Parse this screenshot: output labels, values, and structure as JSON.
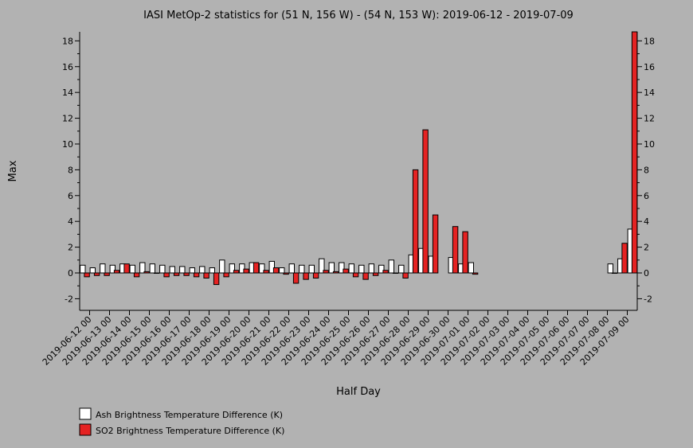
{
  "chart_data": {
    "type": "bar",
    "title": "IASI MetOp-2 statistics for (51 N, 156 W) - (54 N, 153 W): 2019-06-12 - 2019-07-09",
    "xlabel": "Half Day",
    "ylabel": "Max",
    "ylim": [
      -2.9,
      18.7
    ],
    "yticks": [
      -2,
      0,
      2,
      4,
      6,
      8,
      10,
      12,
      14,
      16,
      18
    ],
    "grid": false,
    "legend_position": "bottom-left",
    "x_tick_labels": [
      "2019-06-12 00",
      "2019-06-13 00",
      "2019-06-14 00",
      "2019-06-15 00",
      "2019-06-16 00",
      "2019-06-17 00",
      "2019-06-18 00",
      "2019-06-19 00",
      "2019-06-20 00",
      "2019-06-21 00",
      "2019-06-22 00",
      "2019-06-23 00",
      "2019-06-24 00",
      "2019-06-25 00",
      "2019-06-26 00",
      "2019-06-27 00",
      "2019-06-28 00",
      "2019-06-29 00",
      "2019-06-30 00",
      "2019-07-01 00",
      "2019-07-02 00",
      "2019-07-03 00",
      "2019-07-04 00",
      "2019-07-05 00",
      "2019-07-06 00",
      "2019-07-07 00",
      "2019-07-08 00",
      "2019-07-09 00"
    ],
    "categories": [
      "2019-06-12 00",
      "2019-06-12 12",
      "2019-06-13 00",
      "2019-06-13 12",
      "2019-06-14 00",
      "2019-06-14 12",
      "2019-06-15 00",
      "2019-06-15 12",
      "2019-06-16 00",
      "2019-06-16 12",
      "2019-06-17 00",
      "2019-06-17 12",
      "2019-06-18 00",
      "2019-06-18 12",
      "2019-06-19 00",
      "2019-06-19 12",
      "2019-06-20 00",
      "2019-06-20 12",
      "2019-06-21 00",
      "2019-06-21 12",
      "2019-06-22 00",
      "2019-06-22 12",
      "2019-06-23 00",
      "2019-06-23 12",
      "2019-06-24 00",
      "2019-06-24 12",
      "2019-06-25 00",
      "2019-06-25 12",
      "2019-06-26 00",
      "2019-06-26 12",
      "2019-06-27 00",
      "2019-06-27 12",
      "2019-06-28 00",
      "2019-06-28 12",
      "2019-06-29 00",
      "2019-06-29 12",
      "2019-06-30 00",
      "2019-06-30 12",
      "2019-07-01 00",
      "2019-07-01 12",
      "2019-07-02 00",
      "2019-07-02 12",
      "2019-07-03 00",
      "2019-07-03 12",
      "2019-07-04 00",
      "2019-07-04 12",
      "2019-07-05 00",
      "2019-07-05 12",
      "2019-07-06 00",
      "2019-07-06 12",
      "2019-07-07 00",
      "2019-07-07 12",
      "2019-07-08 00",
      "2019-07-08 12",
      "2019-07-09 00",
      "2019-07-09 12"
    ],
    "series": [
      {
        "name": "Ash Brightness Temperature Difference (K)",
        "color": "#ffffff",
        "values": [
          0.6,
          0.4,
          0.7,
          0.6,
          0.7,
          0.6,
          0.8,
          0.7,
          0.6,
          0.5,
          0.5,
          0.4,
          0.5,
          0.4,
          1.0,
          0.7,
          0.7,
          0.8,
          0.7,
          0.9,
          0.4,
          0.7,
          0.6,
          0.6,
          1.1,
          0.8,
          0.8,
          0.7,
          0.6,
          0.7,
          0.6,
          1.0,
          0.6,
          1.4,
          1.9,
          1.3,
          null,
          1.2,
          0.7,
          0.8,
          null,
          null,
          null,
          null,
          null,
          null,
          null,
          null,
          null,
          null,
          null,
          null,
          null,
          0.7,
          1.1,
          3.4
        ]
      },
      {
        "name": "SO2 Brightness Temperature Difference (K)",
        "color": "#e52222",
        "values": [
          -0.3,
          -0.2,
          -0.2,
          0.2,
          0.7,
          -0.3,
          0.1,
          0.0,
          -0.3,
          -0.2,
          -0.2,
          -0.3,
          -0.4,
          -0.9,
          -0.3,
          0.2,
          0.3,
          0.8,
          0.2,
          0.4,
          -0.1,
          -0.8,
          -0.5,
          -0.4,
          0.2,
          0.1,
          0.3,
          -0.3,
          -0.5,
          -0.2,
          0.2,
          0.0,
          -0.4,
          8.0,
          11.1,
          4.5,
          null,
          3.6,
          3.2,
          -0.1,
          null,
          null,
          null,
          null,
          null,
          null,
          null,
          null,
          null,
          null,
          null,
          null,
          null,
          0.0,
          2.3,
          18.7
        ]
      }
    ]
  }
}
